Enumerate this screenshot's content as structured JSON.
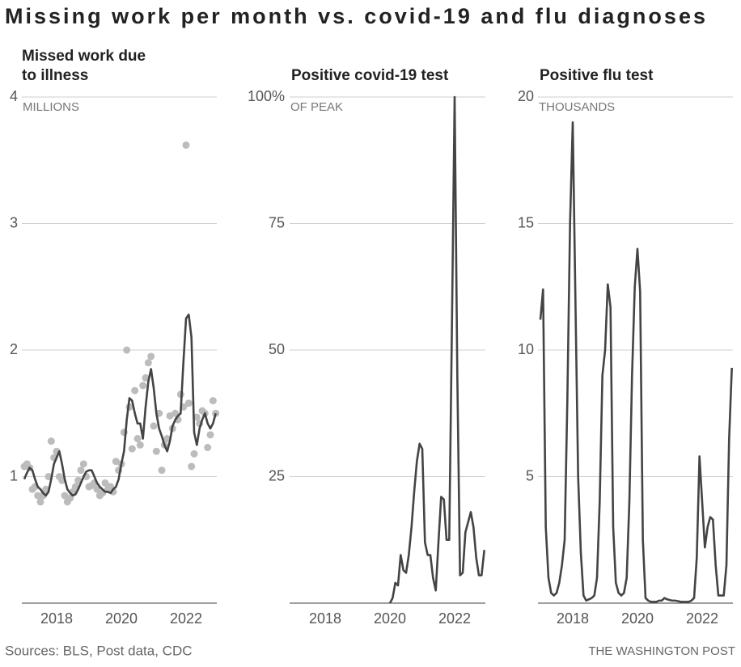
{
  "title": "Missing work per month vs. covid-19 and flu diagnoses",
  "source": "Sources: BLS, Post data, CDC",
  "credit": "THE WASHINGTON POST",
  "chart_data": [
    {
      "type": "line",
      "title_lines": [
        "Missed work due",
        "to illness"
      ],
      "unit": "MILLIONS",
      "xlim": [
        2017,
        2023
      ],
      "xticks": [
        2018,
        2020,
        2022
      ],
      "ylim": [
        0,
        4
      ],
      "yticks": [
        1,
        2,
        3,
        4
      ],
      "grid": true,
      "x": [
        2017,
        2017.083,
        2017.167,
        2017.25,
        2017.333,
        2017.417,
        2017.5,
        2017.583,
        2017.667,
        2017.75,
        2017.833,
        2017.917,
        2018,
        2018.083,
        2018.167,
        2018.25,
        2018.333,
        2018.417,
        2018.5,
        2018.583,
        2018.667,
        2018.75,
        2018.833,
        2018.917,
        2019,
        2019.083,
        2019.167,
        2019.25,
        2019.333,
        2019.417,
        2019.5,
        2019.583,
        2019.667,
        2019.75,
        2019.833,
        2019.917,
        2020,
        2020.083,
        2020.167,
        2020.25,
        2020.333,
        2020.417,
        2020.5,
        2020.583,
        2020.667,
        2020.75,
        2020.833,
        2020.917,
        2021,
        2021.083,
        2021.167,
        2021.25,
        2021.333,
        2021.417,
        2021.5,
        2021.583,
        2021.667,
        2021.75,
        2021.833,
        2021.917,
        2022,
        2022.083,
        2022.167,
        2022.25,
        2022.333,
        2022.417,
        2022.5,
        2022.583,
        2022.667,
        2022.75,
        2022.833,
        2022.917
      ],
      "series": [
        {
          "type": "scatter",
          "color": "#bcbcbc",
          "values": [
            1.08,
            1.1,
            1.07,
            0.9,
            0.92,
            0.85,
            0.8,
            0.85,
            0.9,
            1.0,
            1.28,
            1.15,
            1.2,
            1.0,
            0.97,
            0.85,
            0.8,
            0.83,
            0.88,
            0.92,
            0.97,
            1.05,
            1.1,
            1.0,
            0.92,
            0.93,
            0.95,
            0.9,
            0.85,
            0.87,
            0.95,
            0.9,
            0.92,
            0.88,
            1.12,
            1.05,
            1.1,
            1.35,
            2.0,
            1.55,
            1.22,
            1.68,
            1.3,
            1.25,
            1.72,
            1.78,
            1.9,
            1.95,
            1.4,
            1.2,
            1.5,
            1.05,
            1.25,
            1.3,
            1.48,
            1.38,
            1.5,
            1.45,
            1.65,
            1.55,
            3.62,
            1.58,
            1.08,
            1.18,
            1.47,
            1.42,
            1.52,
            1.5,
            1.23,
            1.33,
            1.6,
            1.5
          ]
        },
        {
          "type": "line",
          "color": "#444444",
          "values": [
            0.98,
            1.03,
            1.07,
            1.05,
            0.98,
            0.92,
            0.9,
            0.87,
            0.85,
            0.88,
            0.98,
            1.1,
            1.15,
            1.2,
            1.1,
            0.98,
            0.9,
            0.87,
            0.85,
            0.86,
            0.9,
            0.95,
            1.0,
            1.04,
            1.05,
            1.05,
            1.0,
            0.95,
            0.92,
            0.9,
            0.88,
            0.88,
            0.87,
            0.9,
            0.92,
            0.98,
            1.1,
            1.2,
            1.45,
            1.62,
            1.6,
            1.5,
            1.42,
            1.42,
            1.3,
            1.55,
            1.75,
            1.85,
            1.7,
            1.5,
            1.38,
            1.32,
            1.25,
            1.2,
            1.28,
            1.4,
            1.45,
            1.48,
            1.5,
            1.9,
            2.25,
            2.28,
            2.1,
            1.35,
            1.25,
            1.38,
            1.45,
            1.5,
            1.42,
            1.38,
            1.42,
            1.5
          ]
        }
      ]
    },
    {
      "type": "line",
      "title_lines": [
        "Positive covid-19 test"
      ],
      "unit": "OF PEAK",
      "xlim": [
        2017,
        2023
      ],
      "xticks": [
        2018,
        2020,
        2022
      ],
      "ylim": [
        0,
        100
      ],
      "yticks": [
        25,
        50,
        75,
        {
          "value": 100,
          "label": "100%"
        }
      ],
      "grid": true,
      "x": [
        2020,
        2020.083,
        2020.167,
        2020.25,
        2020.333,
        2020.417,
        2020.5,
        2020.583,
        2020.667,
        2020.75,
        2020.833,
        2020.917,
        2021,
        2021.083,
        2021.167,
        2021.25,
        2021.333,
        2021.417,
        2021.5,
        2021.583,
        2021.667,
        2021.75,
        2021.833,
        2021.917,
        2022,
        2022.083,
        2022.167,
        2022.25,
        2022.333,
        2022.417,
        2022.5,
        2022.583,
        2022.667,
        2022.75,
        2022.833,
        2022.917
      ],
      "series": [
        {
          "type": "line",
          "color": "#444444",
          "values": [
            0,
            1,
            4,
            3.5,
            9.5,
            6.5,
            6,
            9.5,
            15,
            22,
            28,
            31.5,
            30.5,
            12,
            9.5,
            9.5,
            5,
            2.5,
            12,
            21,
            20.5,
            12.5,
            12.5,
            55,
            100,
            45,
            5.5,
            6,
            14,
            16,
            18,
            15,
            9,
            5.5,
            5.5,
            10.5
          ]
        }
      ]
    },
    {
      "type": "line",
      "title_lines": [
        "Positive flu test"
      ],
      "unit": "THOUSANDS",
      "xlim": [
        2017,
        2023
      ],
      "xticks": [
        2018,
        2020,
        2022
      ],
      "ylim": [
        0,
        20
      ],
      "yticks": [
        5,
        10,
        15,
        20
      ],
      "grid": true,
      "x": [
        2017,
        2017.083,
        2017.167,
        2017.25,
        2017.333,
        2017.417,
        2017.5,
        2017.583,
        2017.667,
        2017.75,
        2017.833,
        2017.917,
        2018,
        2018.083,
        2018.167,
        2018.25,
        2018.333,
        2018.417,
        2018.5,
        2018.583,
        2018.667,
        2018.75,
        2018.833,
        2018.917,
        2019,
        2019.083,
        2019.167,
        2019.25,
        2019.333,
        2019.417,
        2019.5,
        2019.583,
        2019.667,
        2019.75,
        2019.833,
        2019.917,
        2020,
        2020.083,
        2020.167,
        2020.25,
        2020.333,
        2020.417,
        2020.5,
        2020.583,
        2020.667,
        2020.75,
        2020.833,
        2020.917,
        2021,
        2021.083,
        2021.167,
        2021.25,
        2021.333,
        2021.417,
        2021.5,
        2021.583,
        2021.667,
        2021.75,
        2021.833,
        2021.917,
        2022,
        2022.083,
        2022.167,
        2022.25,
        2022.333,
        2022.417,
        2022.5,
        2022.583,
        2022.667,
        2022.75,
        2022.833,
        2022.917
      ],
      "series": [
        {
          "type": "line",
          "color": "#444444",
          "values": [
            11.2,
            12.4,
            3.0,
            1.0,
            0.4,
            0.3,
            0.4,
            0.8,
            1.5,
            2.5,
            8,
            15,
            19,
            12,
            5,
            2,
            0.3,
            0.1,
            0.15,
            0.2,
            0.3,
            1,
            4,
            9,
            10,
            12.6,
            11.7,
            3,
            0.8,
            0.4,
            0.3,
            0.4,
            1.0,
            4,
            9,
            12.5,
            14,
            12.3,
            2.5,
            0.2,
            0.1,
            0.05,
            0.05,
            0.05,
            0.1,
            0.1,
            0.2,
            0.15,
            0.12,
            0.1,
            0.1,
            0.08,
            0.05,
            0.05,
            0.05,
            0.05,
            0.1,
            0.2,
            1.8,
            5.8,
            4.0,
            2.2,
            3.0,
            3.4,
            3.3,
            1.5,
            0.3,
            0.3,
            0.3,
            1.5,
            6.5,
            9.3
          ]
        }
      ]
    }
  ]
}
